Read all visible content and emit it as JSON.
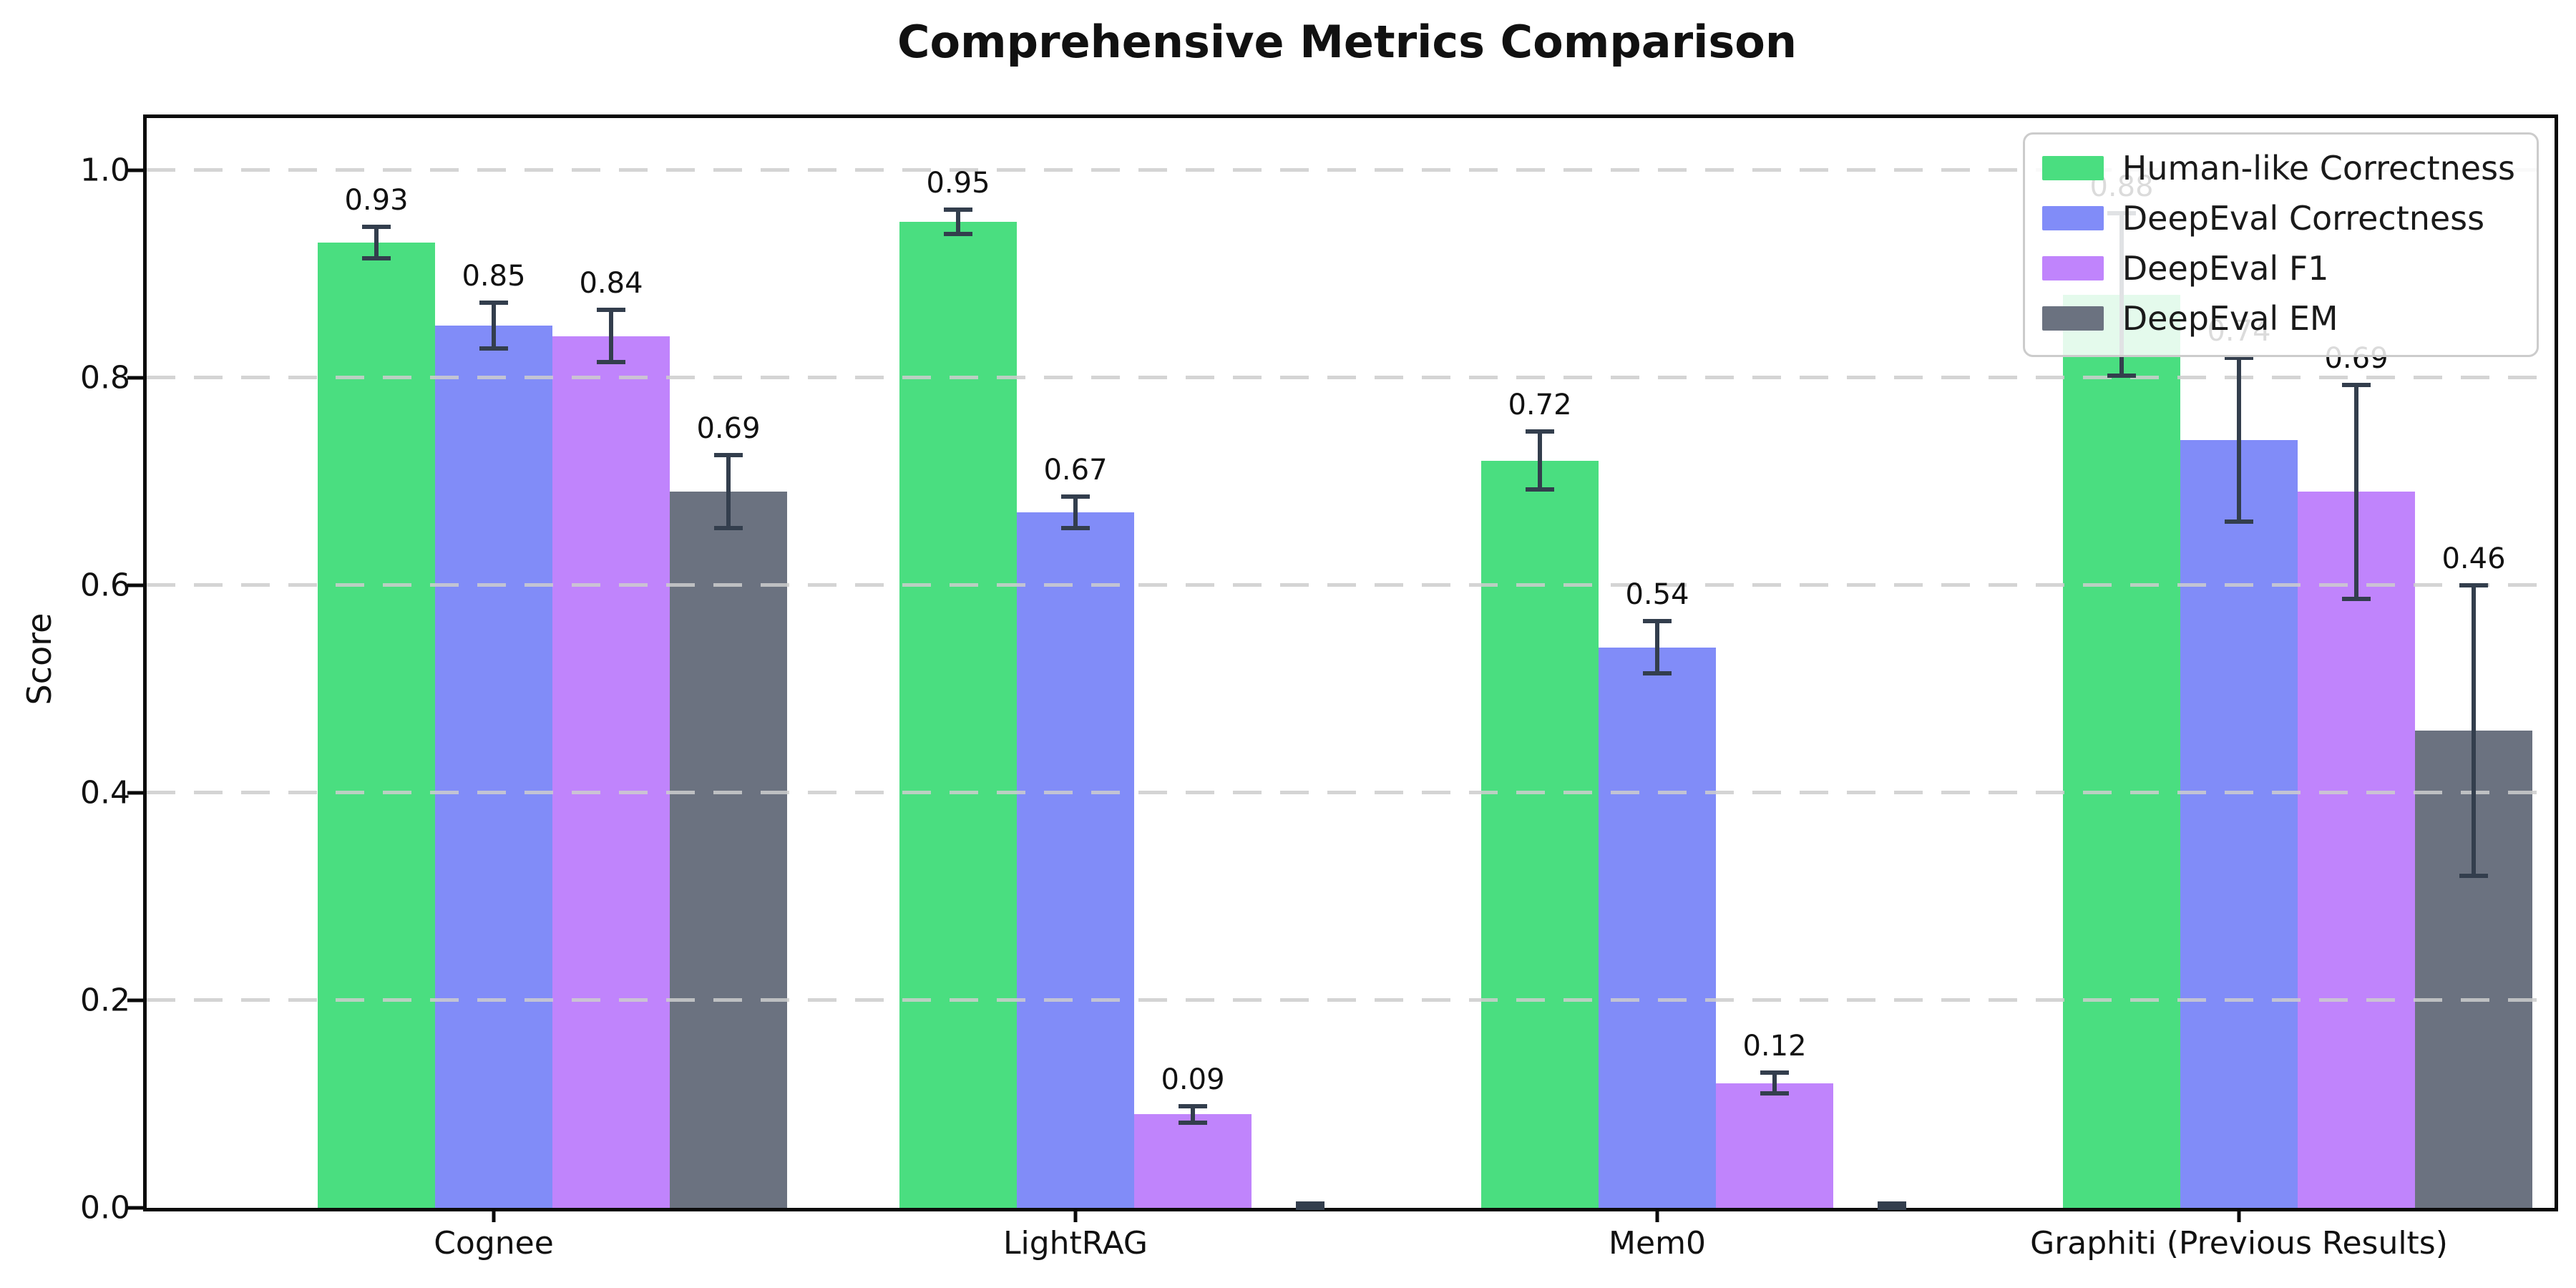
{
  "title": "Comprehensive Metrics Comparison",
  "chart_data": {
    "type": "bar",
    "title": "Comprehensive Metrics Comparison",
    "ylabel": "Score",
    "xlabel": "",
    "categories": [
      "Cognee",
      "LightRAG",
      "Mem0",
      "Graphiti (Previous Results)"
    ],
    "series": [
      {
        "name": "Human-like Correctness",
        "color": "#4ade80",
        "values": [
          0.93,
          0.95,
          0.72,
          0.88
        ],
        "errors": [
          0.015,
          0.012,
          0.028,
          0.078
        ],
        "labels": [
          "0.93",
          "0.95",
          "0.72",
          "0.88"
        ]
      },
      {
        "name": "DeepEval Correctness",
        "color": "#818cf8",
        "values": [
          0.85,
          0.67,
          0.54,
          0.74
        ],
        "errors": [
          0.022,
          0.015,
          0.025,
          0.079
        ],
        "labels": [
          "0.85",
          "0.67",
          "0.54",
          "0.74"
        ]
      },
      {
        "name": "DeepEval F1",
        "color": "#c084fc",
        "values": [
          0.84,
          0.09,
          0.12,
          0.69
        ],
        "errors": [
          0.025,
          0.008,
          0.01,
          0.103
        ],
        "labels": [
          "0.84",
          "0.09",
          "0.12",
          "0.69"
        ]
      },
      {
        "name": "DeepEval EM",
        "color": "#6b7280",
        "values": [
          0.69,
          0.0,
          0.0,
          0.46
        ],
        "errors": [
          0.035,
          0.004,
          0.004,
          0.14
        ],
        "labels": [
          "0.69",
          "",
          "",
          "0.46"
        ]
      }
    ],
    "yticks": [
      "0.0",
      "0.2",
      "0.4",
      "0.6",
      "0.8",
      "1.0"
    ],
    "ylim": [
      0,
      1.05
    ],
    "grid": "horizontal-dashed",
    "legend_position": "upper-right",
    "error_color": "#333e4d"
  }
}
